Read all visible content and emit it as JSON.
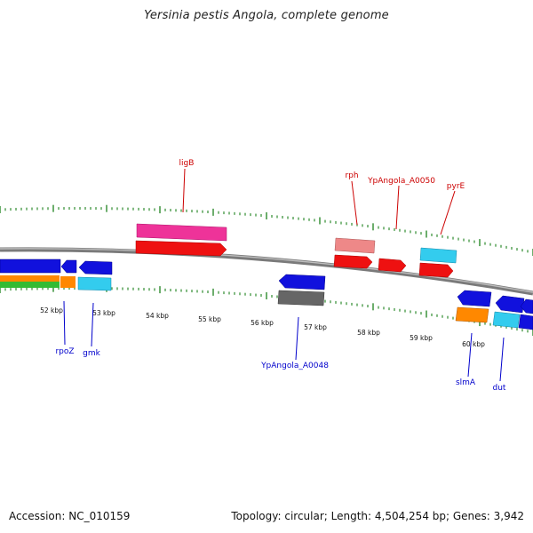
{
  "title": "Yersinia pestis Angola, complete genome",
  "accession_text": "Accession: NC_010159",
  "topology_text": "Topology: circular; Length: 4,504,254 bp; Genes: 3,942",
  "colors": {
    "backbone": "#8a8a8a",
    "ticks": "#2e8b2e",
    "forward_label": "#cc0000",
    "reverse_label": "#0000cc",
    "red": "#ee1111",
    "pink": "#ee3399",
    "salmon": "#ee8888",
    "cyan": "#33ccee",
    "blue": "#1111dd",
    "orange": "#ff8800",
    "green": "#33bb33",
    "gray": "#666666"
  },
  "scale": {
    "labels": [
      "52 kbp",
      "53 kbp",
      "54 kbp",
      "55 kbp",
      "56 kbp",
      "57 kbp",
      "58 kbp",
      "59 kbp",
      "60 kbp"
    ]
  },
  "forward_genes": [
    {
      "label": "ligB"
    },
    {
      "label": "rph"
    },
    {
      "label": "YpAngola_A0050"
    },
    {
      "label": "pyrE"
    }
  ],
  "reverse_genes": [
    {
      "label": "rpoZ"
    },
    {
      "label": "gmk"
    },
    {
      "label": "YpAngola_A0048"
    },
    {
      "label": "slmA"
    },
    {
      "label": "dut"
    }
  ]
}
